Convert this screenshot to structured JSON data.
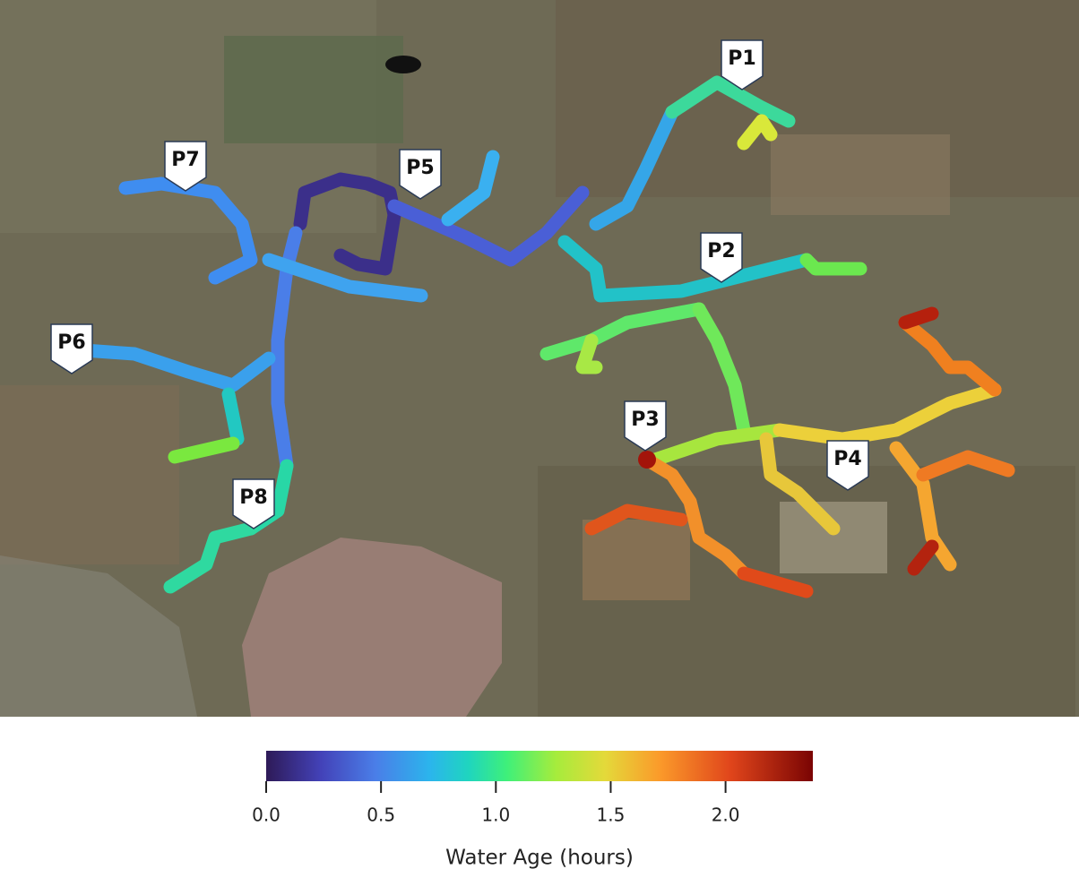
{
  "map": {
    "markers": [
      "P1",
      "P2",
      "P3",
      "P4",
      "P5",
      "P6",
      "P7",
      "P8"
    ]
  },
  "colorbar": {
    "title": "Water Age (hours)",
    "lim": [
      0,
      2.38
    ],
    "ticks": [
      {
        "value": 0,
        "label": "0.0"
      },
      {
        "value": 0.5,
        "label": "0.5"
      },
      {
        "value": 1,
        "label": "1.0"
      },
      {
        "value": 1.5,
        "label": "1.5"
      },
      {
        "value": 2,
        "label": "2.0"
      }
    ]
  }
}
